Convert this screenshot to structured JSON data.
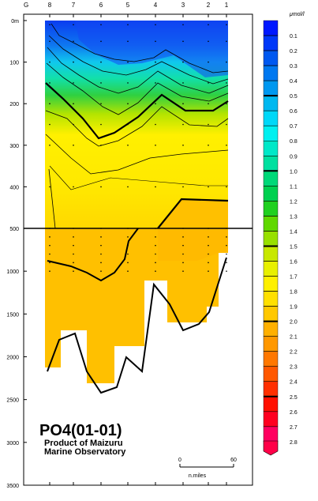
{
  "chart_data": {
    "type": "heatmap",
    "title": "PO4(01-01)",
    "subtitle_line1": "Product of Maizuru",
    "subtitle_line2": "Marine Observatory",
    "colorbar_unit": "μmol/l",
    "station_prefix": "G",
    "stations": [
      "8",
      "7",
      "6",
      "5",
      "4",
      "3",
      "2",
      "1"
    ],
    "upper_depth_ticks": [
      {
        "label": "0m",
        "depth": 0
      },
      {
        "label": "100",
        "depth": 100
      },
      {
        "label": "200",
        "depth": 200
      },
      {
        "label": "300",
        "depth": 300
      },
      {
        "label": "400",
        "depth": 400
      },
      {
        "label": "500",
        "depth": 500
      }
    ],
    "lower_depth_ticks": [
      {
        "label": "1000",
        "depth": 1000
      },
      {
        "label": "1500",
        "depth": 1500
      },
      {
        "label": "2000",
        "depth": 2000
      },
      {
        "label": "2500",
        "depth": 2500
      },
      {
        "label": "3000",
        "depth": 3000
      },
      {
        "label": "3500",
        "depth": 3500
      }
    ],
    "upper_ylim": [
      0,
      500
    ],
    "lower_ylim": [
      500,
      3500
    ],
    "colorbar_levels": [
      {
        "label": "0.1",
        "value": 0.1
      },
      {
        "label": "0.2",
        "value": 0.2
      },
      {
        "label": "0.3",
        "value": 0.3
      },
      {
        "label": "0.4",
        "value": 0.4
      },
      {
        "label": "0.5",
        "value": 0.5
      },
      {
        "label": "0.6",
        "value": 0.6
      },
      {
        "label": "0.7",
        "value": 0.7
      },
      {
        "label": "0.8",
        "value": 0.8
      },
      {
        "label": "0.9",
        "value": 0.9
      },
      {
        "label": "1.0",
        "value": 1.0
      },
      {
        "label": "1.1",
        "value": 1.1
      },
      {
        "label": "1.2",
        "value": 1.2
      },
      {
        "label": "1.3",
        "value": 1.3
      },
      {
        "label": "1.4",
        "value": 1.4
      },
      {
        "label": "1.5",
        "value": 1.5
      },
      {
        "label": "1.6",
        "value": 1.6
      },
      {
        "label": "1.7",
        "value": 1.7
      },
      {
        "label": "1.8",
        "value": 1.8
      },
      {
        "label": "1.9",
        "value": 1.9
      },
      {
        "label": "2.0",
        "value": 2.0
      },
      {
        "label": "2.1",
        "value": 2.1
      },
      {
        "label": "2.2",
        "value": 2.2
      },
      {
        "label": "2.3",
        "value": 2.3
      },
      {
        "label": "2.4",
        "value": 2.4
      },
      {
        "label": "2.5",
        "value": 2.5
      },
      {
        "label": "2.6",
        "value": 2.6
      },
      {
        "label": "2.7",
        "value": 2.7
      },
      {
        "label": "2.8",
        "value": 2.8
      }
    ],
    "colorbar_colors": [
      "#0018ff",
      "#0038f8",
      "#0058f0",
      "#0078f0",
      "#0098f0",
      "#00b8f0",
      "#00d8f8",
      "#00f0f0",
      "#00e8c8",
      "#00e0a0",
      "#00d878",
      "#00d050",
      "#20d020",
      "#60d800",
      "#98e000",
      "#c8e800",
      "#e8f000",
      "#fff000",
      "#ffe000",
      "#ffc800",
      "#ffb000",
      "#ff9800",
      "#ff7800",
      "#ff5800",
      "#ff3000",
      "#ff1000",
      "#ff0020",
      "#ff0060"
    ],
    "scale_bar": {
      "min_label": "0",
      "max_label": "60",
      "unit": "n.miles"
    }
  }
}
